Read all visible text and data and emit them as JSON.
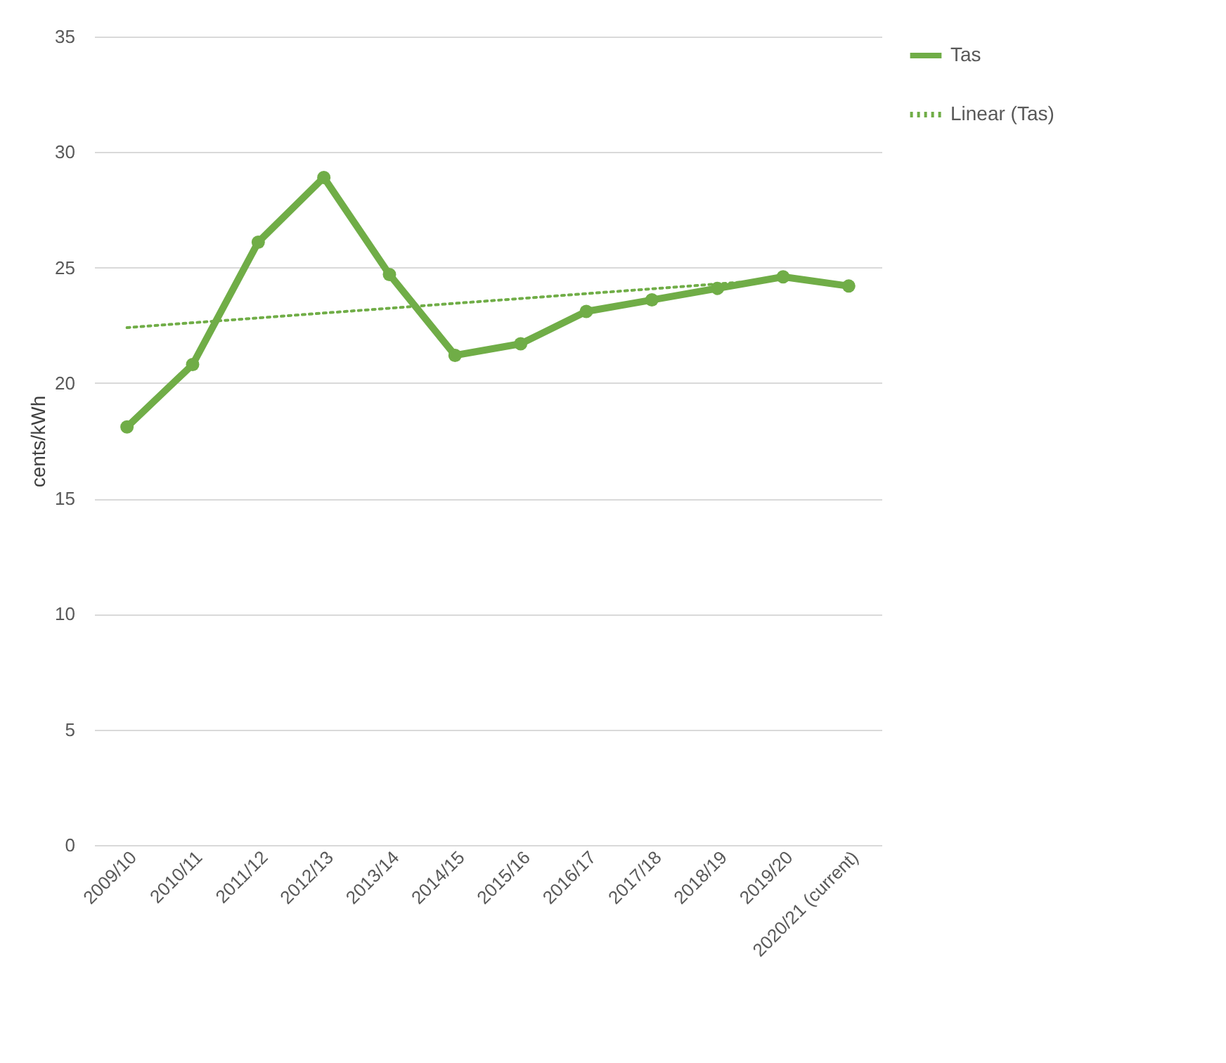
{
  "chart_data": {
    "type": "line",
    "ylabel": "cents/kWh",
    "categories": [
      "2009/10",
      "2010/11",
      "2011/12",
      "2012/13",
      "2013/14",
      "2014/15",
      "2015/16",
      "2016/17",
      "2017/18",
      "2018/19",
      "2019/20",
      "2020/21 (current)"
    ],
    "series": [
      {
        "name": "Tas",
        "color": "#70ad47",
        "marker": "circle",
        "line_style": "solid",
        "values": [
          18.1,
          20.8,
          26.1,
          28.9,
          24.7,
          21.2,
          21.7,
          23.1,
          23.6,
          24.1,
          24.6,
          24.2
        ]
      },
      {
        "name": "Linear (Tas)",
        "color": "#70ad47",
        "type": "line",
        "marker": "none",
        "line_style": "dotted",
        "x": [
          "2009/10",
          "2019/20"
        ],
        "values": [
          22.4,
          24.5
        ]
      }
    ],
    "ylim": [
      0,
      35
    ],
    "yticks": [
      0,
      5,
      10,
      15,
      20,
      25,
      30,
      35
    ],
    "grid": "y",
    "legend": "right"
  }
}
